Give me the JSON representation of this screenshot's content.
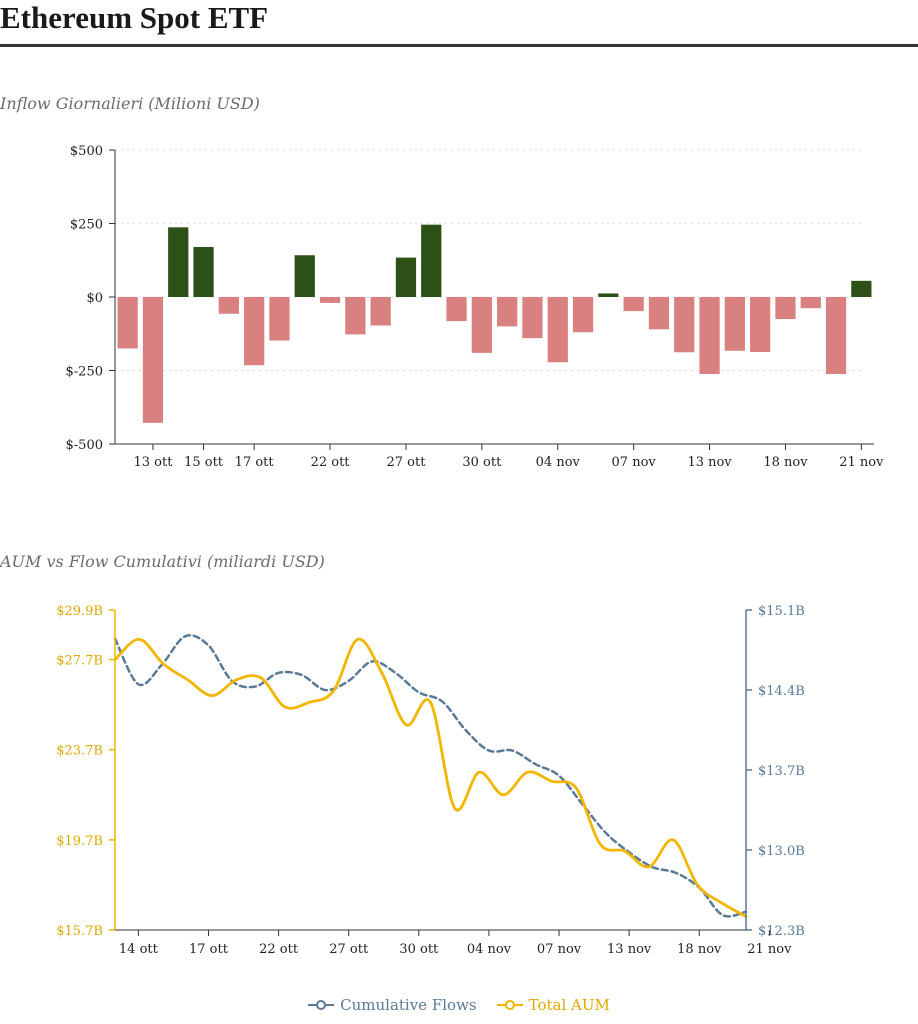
{
  "page": {
    "title": "Ethereum Spot ETF"
  },
  "chart_data": [
    {
      "type": "bar",
      "title": "Inflow Giornalieri (Milioni USD)",
      "ylim": [
        -500,
        500
      ],
      "yticks": [
        500,
        250,
        0,
        -250,
        -500
      ],
      "ytick_labels": [
        "$500",
        "$250",
        "$0",
        "$-250",
        "$-500"
      ],
      "xtick_labels": [
        {
          "index": 1,
          "label": "13 ott"
        },
        {
          "index": 3,
          "label": "15 ott"
        },
        {
          "index": 5,
          "label": "17 ott"
        },
        {
          "index": 8,
          "label": "22 ott"
        },
        {
          "index": 11,
          "label": "27 ott"
        },
        {
          "index": 14,
          "label": "30 ott"
        },
        {
          "index": 17,
          "label": "04 nov"
        },
        {
          "index": 20,
          "label": "07 nov"
        },
        {
          "index": 23,
          "label": "13 nov"
        },
        {
          "index": 26,
          "label": "18 nov"
        },
        {
          "index": 29,
          "label": "21 nov"
        }
      ],
      "values": [
        -175,
        -428,
        237,
        170,
        -57,
        -232,
        -148,
        142,
        -20,
        -127,
        -97,
        134,
        246,
        -82,
        -190,
        -100,
        -140,
        -222,
        -120,
        12,
        -48,
        -110,
        -188,
        -262,
        -183,
        -187,
        -75,
        -38,
        -262,
        55
      ],
      "colors": {
        "positive": "#2d5016",
        "negative": "#d98080"
      }
    },
    {
      "type": "line",
      "title": "AUM vs Flow Cumulativi (miliardi USD)",
      "y_left": {
        "ticks": [
          29.9,
          27.7,
          23.7,
          19.7,
          15.7
        ],
        "labels": [
          "$29.9B",
          "$27.7B",
          "$23.7B",
          "$19.7B",
          "$15.7B"
        ],
        "color": "#f2b600"
      },
      "y_right": {
        "ticks": [
          15.1,
          14.4,
          13.7,
          13.0,
          12.3
        ],
        "labels": [
          "$15.1B",
          "$14.4B",
          "$13.7B",
          "$13.0B",
          "$12.3B"
        ],
        "color": "#5a7a96"
      },
      "xtick_labels": [
        {
          "index": 1,
          "label": "14 ott"
        },
        {
          "index": 4,
          "label": "17 ott"
        },
        {
          "index": 7,
          "label": "22 ott"
        },
        {
          "index": 10,
          "label": "27 ott"
        },
        {
          "index": 13,
          "label": "30 ott"
        },
        {
          "index": 16,
          "label": "04 nov"
        },
        {
          "index": 19,
          "label": "07 nov"
        },
        {
          "index": 22,
          "label": "13 nov"
        },
        {
          "index": 25,
          "label": "18 nov"
        },
        {
          "index": 28,
          "label": "21 nov"
        }
      ],
      "series": [
        {
          "name": "Cumulative Flows",
          "axis": "right",
          "color": "#5a7a96",
          "values": [
            14.85,
            14.45,
            14.62,
            14.87,
            14.79,
            14.48,
            14.43,
            14.55,
            14.53,
            14.4,
            14.48,
            14.65,
            14.55,
            14.38,
            14.3,
            14.05,
            13.87,
            13.87,
            13.75,
            13.65,
            13.4,
            13.15,
            12.98,
            12.85,
            12.8,
            12.67,
            12.43,
            12.46
          ]
        },
        {
          "name": "Total AUM",
          "axis": "left",
          "color": "#f2b600",
          "values": [
            27.7,
            28.6,
            27.5,
            26.8,
            26.1,
            26.8,
            26.9,
            25.6,
            25.8,
            26.3,
            28.6,
            27.1,
            24.8,
            25.8,
            21.1,
            22.7,
            21.7,
            22.7,
            22.3,
            22.0,
            19.5,
            19.2,
            18.5,
            19.7,
            17.7,
            16.9,
            16.3
          ]
        }
      ],
      "legend": [
        "Cumulative Flows",
        "Total AUM"
      ]
    }
  ]
}
